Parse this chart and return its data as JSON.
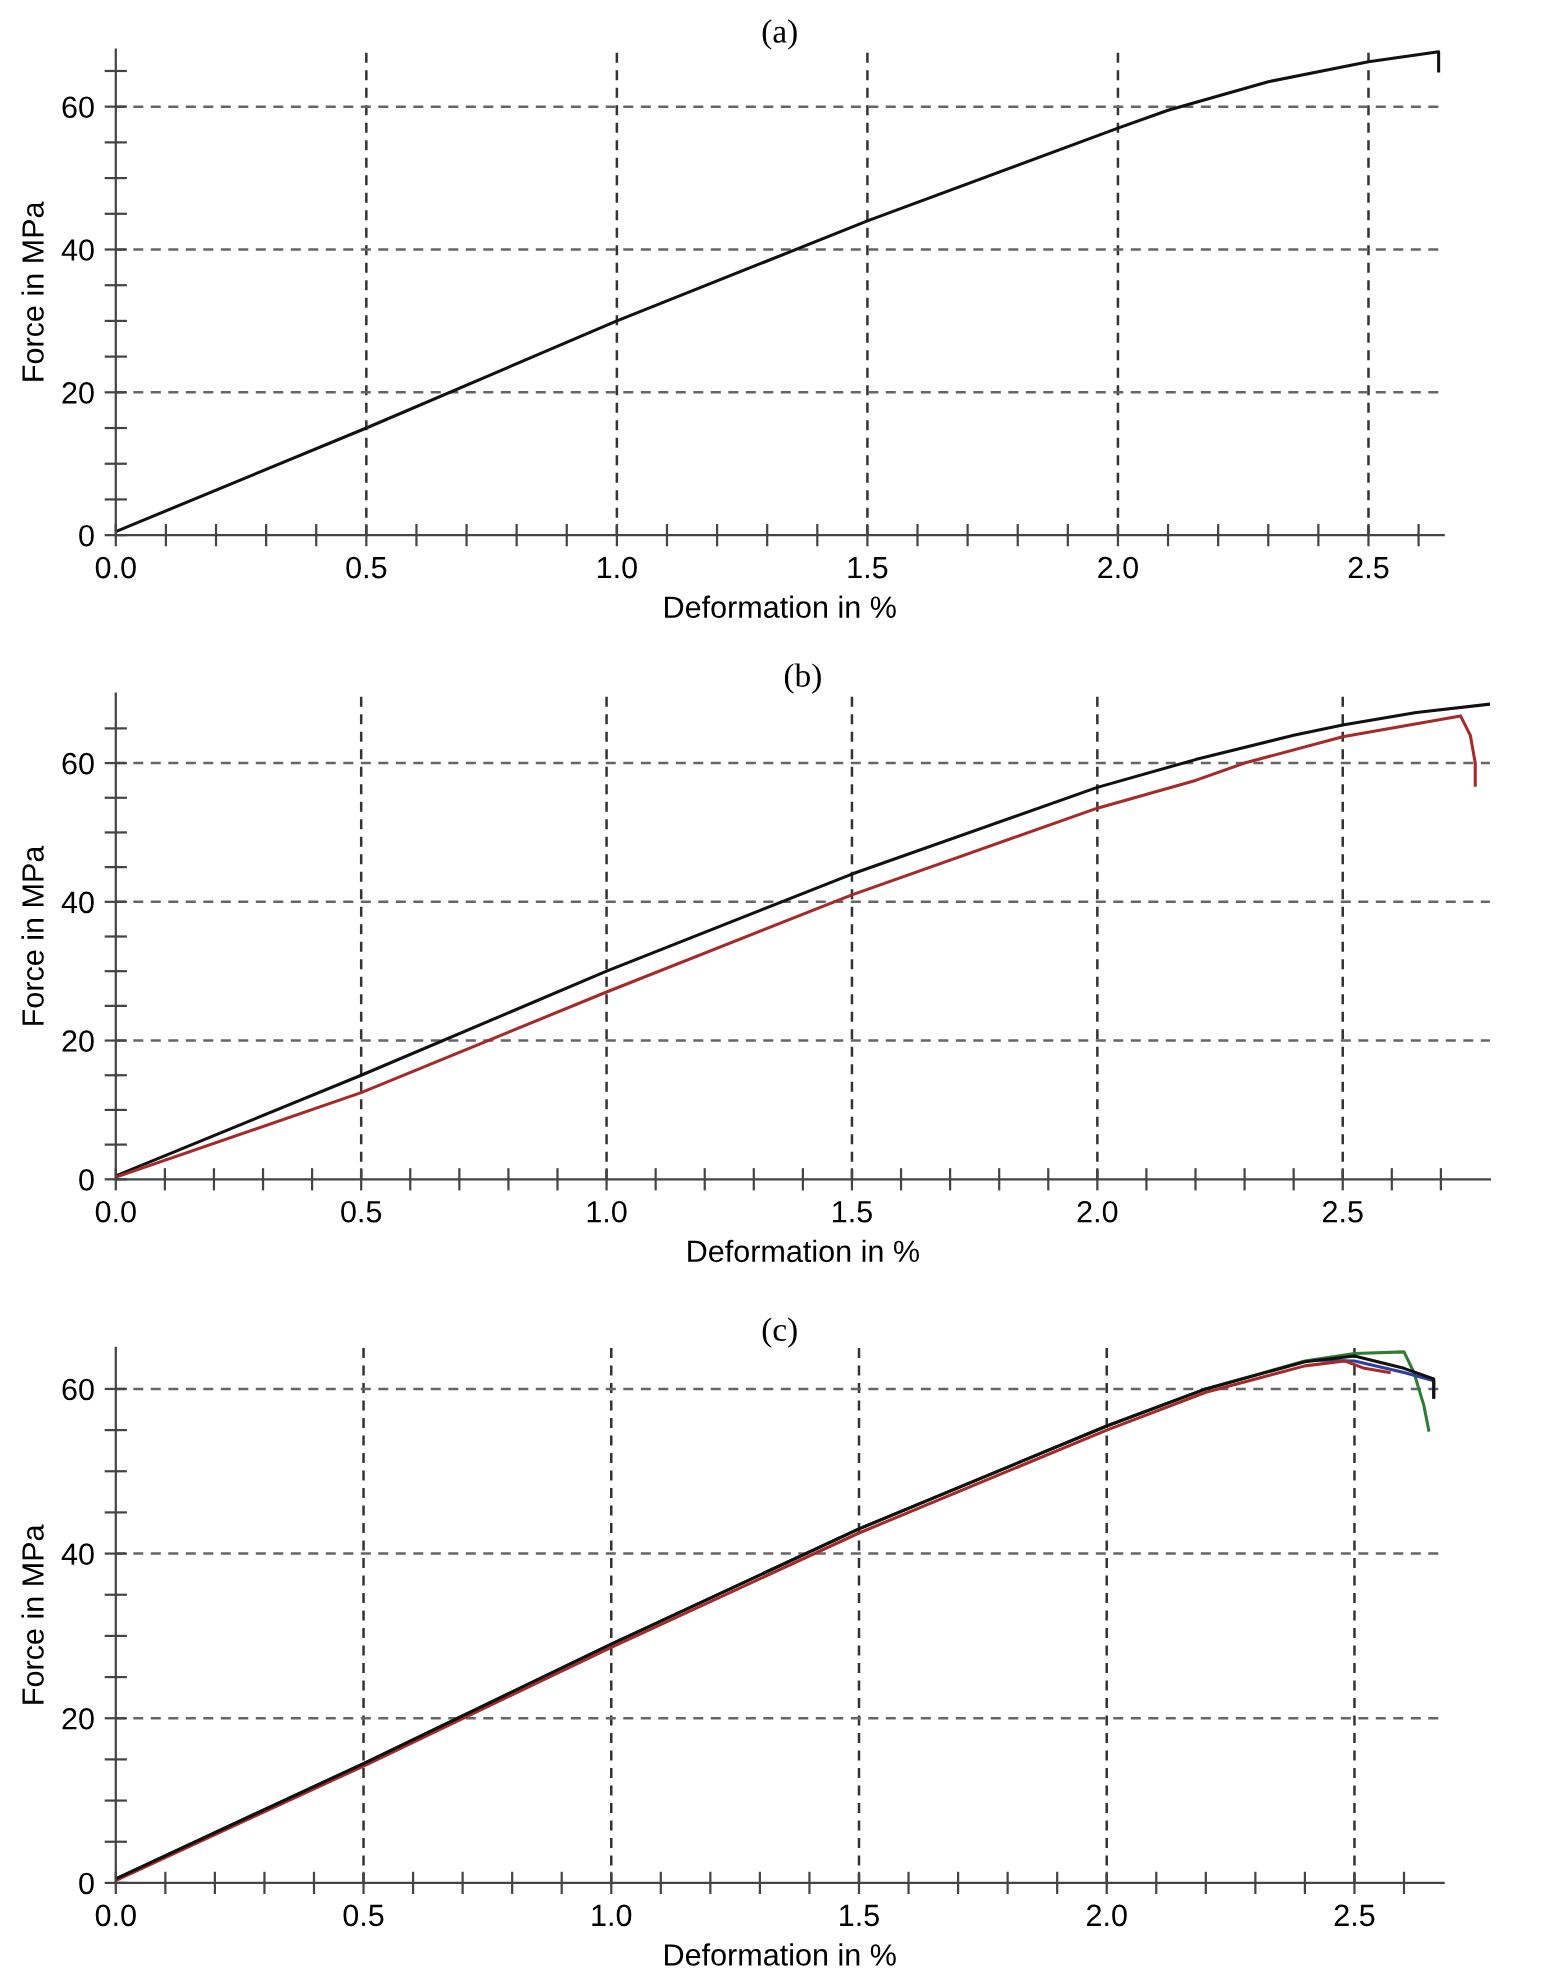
{
  "chart_data": [
    {
      "type": "line",
      "title": "(a)",
      "xlabel": "Deformation in %",
      "ylabel": "Force in MPa",
      "xlim": [
        0,
        2.65
      ],
      "ylim": [
        0,
        68
      ],
      "grid": true,
      "line_style": "solid",
      "marker": "none",
      "xticks": [
        {
          "value": 0,
          "label": "0.0"
        },
        {
          "value": 0.1,
          "label": null
        },
        {
          "value": 0.2,
          "label": null
        },
        {
          "value": 0.3,
          "label": null
        },
        {
          "value": 0.4,
          "label": null
        },
        {
          "value": 0.5,
          "label": "0.5"
        },
        {
          "value": 0.6,
          "label": null
        },
        {
          "value": 0.7,
          "label": null
        },
        {
          "value": 0.8,
          "label": null
        },
        {
          "value": 0.9,
          "label": null
        },
        {
          "value": 1.0,
          "label": "1.0"
        },
        {
          "value": 1.1,
          "label": null
        },
        {
          "value": 1.2,
          "label": null
        },
        {
          "value": 1.3,
          "label": null
        },
        {
          "value": 1.4,
          "label": null
        },
        {
          "value": 1.5,
          "label": "1.5"
        },
        {
          "value": 1.6,
          "label": null
        },
        {
          "value": 1.7,
          "label": null
        },
        {
          "value": 1.8,
          "label": null
        },
        {
          "value": 1.9,
          "label": null
        },
        {
          "value": 2.0,
          "label": "2.0"
        },
        {
          "value": 2.1,
          "label": null
        },
        {
          "value": 2.2,
          "label": null
        },
        {
          "value": 2.3,
          "label": null
        },
        {
          "value": 2.4,
          "label": null
        },
        {
          "value": 2.5,
          "label": "2.5"
        },
        {
          "value": 2.6,
          "label": null
        }
      ],
      "yticks": [
        0,
        {
          "value": 5,
          "label": null
        },
        {
          "value": 10,
          "label": null
        },
        {
          "value": 15,
          "label": null
        },
        20,
        {
          "value": 25,
          "label": null
        },
        {
          "value": 30,
          "label": null
        },
        {
          "value": 35,
          "label": null
        },
        40,
        {
          "value": 45,
          "label": null
        },
        {
          "value": 50,
          "label": null
        },
        {
          "value": 55,
          "label": null
        },
        60,
        {
          "value": 65,
          "label": null
        }
      ],
      "series": [
        {
          "color": "#111111",
          "x": [
            0,
            0.5,
            1.0,
            1.5,
            2.0,
            2.1,
            2.3,
            2.5,
            2.64,
            2.64
          ],
          "values": [
            0.5,
            15,
            30,
            44,
            57,
            59.5,
            63.5,
            66.3,
            67.7,
            65
          ]
        }
      ]
    },
    {
      "type": "line",
      "title": "(b)",
      "xlabel": "Deformation in %",
      "ylabel": "Force in MPa",
      "xlim": [
        0,
        2.8
      ],
      "ylim": [
        0,
        70
      ],
      "grid": true,
      "line_style": "solid",
      "marker": "none",
      "xticks": [
        {
          "value": 0,
          "label": "0.0"
        },
        {
          "value": 0.1,
          "label": null
        },
        {
          "value": 0.2,
          "label": null
        },
        {
          "value": 0.3,
          "label": null
        },
        {
          "value": 0.4,
          "label": null
        },
        {
          "value": 0.5,
          "label": "0.5"
        },
        {
          "value": 0.6,
          "label": null
        },
        {
          "value": 0.7,
          "label": null
        },
        {
          "value": 0.8,
          "label": null
        },
        {
          "value": 0.9,
          "label": null
        },
        {
          "value": 1.0,
          "label": "1.0"
        },
        {
          "value": 1.1,
          "label": null
        },
        {
          "value": 1.2,
          "label": null
        },
        {
          "value": 1.3,
          "label": null
        },
        {
          "value": 1.4,
          "label": null
        },
        {
          "value": 1.5,
          "label": "1.5"
        },
        {
          "value": 1.6,
          "label": null
        },
        {
          "value": 1.7,
          "label": null
        },
        {
          "value": 1.8,
          "label": null
        },
        {
          "value": 1.9,
          "label": null
        },
        {
          "value": 2.0,
          "label": "2.0"
        },
        {
          "value": 2.1,
          "label": null
        },
        {
          "value": 2.2,
          "label": null
        },
        {
          "value": 2.3,
          "label": null
        },
        {
          "value": 2.4,
          "label": null
        },
        {
          "value": 2.5,
          "label": "2.5"
        },
        {
          "value": 2.6,
          "label": null
        },
        {
          "value": 2.7,
          "label": null
        }
      ],
      "yticks": [
        0,
        {
          "value": 5,
          "label": null
        },
        {
          "value": 10,
          "label": null
        },
        {
          "value": 15,
          "label": null
        },
        20,
        {
          "value": 25,
          "label": null
        },
        {
          "value": 30,
          "label": null
        },
        {
          "value": 35,
          "label": null
        },
        40,
        {
          "value": 45,
          "label": null
        },
        {
          "value": 50,
          "label": null
        },
        {
          "value": 55,
          "label": null
        },
        60,
        {
          "value": 65,
          "label": null
        }
      ],
      "series": [
        {
          "color": "#111111",
          "x": [
            0,
            0.5,
            1.0,
            1.5,
            2.0,
            2.2,
            2.4,
            2.5,
            2.65,
            2.8
          ],
          "values": [
            0.5,
            15,
            30,
            44,
            56.5,
            60.5,
            64,
            65.5,
            67.3,
            68.5
          ]
        },
        {
          "color": "#a52a2a",
          "x": [
            0,
            0.5,
            1.0,
            1.5,
            2.0,
            2.2,
            2.3,
            2.5,
            2.74,
            2.76,
            2.77,
            2.77
          ],
          "values": [
            0.3,
            12.5,
            27,
            41,
            53.5,
            57.5,
            60,
            63.8,
            66.8,
            64,
            60,
            56.8
          ]
        }
      ]
    },
    {
      "type": "line",
      "title": "(c)",
      "xlabel": "Deformation in %",
      "ylabel": "Force in MPa",
      "xlim": [
        0,
        2.68
      ],
      "ylim": [
        0,
        65
      ],
      "grid": true,
      "line_style": "solid",
      "marker": "none",
      "xticks": [
        {
          "value": 0,
          "label": "0.0"
        },
        {
          "value": 0.1,
          "label": null
        },
        {
          "value": 0.2,
          "label": null
        },
        {
          "value": 0.3,
          "label": null
        },
        {
          "value": 0.4,
          "label": null
        },
        {
          "value": 0.5,
          "label": "0.5"
        },
        {
          "value": 0.6,
          "label": null
        },
        {
          "value": 0.7,
          "label": null
        },
        {
          "value": 0.8,
          "label": null
        },
        {
          "value": 0.9,
          "label": null
        },
        {
          "value": 1.0,
          "label": "1.0"
        },
        {
          "value": 1.1,
          "label": null
        },
        {
          "value": 1.2,
          "label": null
        },
        {
          "value": 1.3,
          "label": null
        },
        {
          "value": 1.4,
          "label": null
        },
        {
          "value": 1.5,
          "label": "1.5"
        },
        {
          "value": 1.6,
          "label": null
        },
        {
          "value": 1.7,
          "label": null
        },
        {
          "value": 1.8,
          "label": null
        },
        {
          "value": 1.9,
          "label": null
        },
        {
          "value": 2.0,
          "label": "2.0"
        },
        {
          "value": 2.1,
          "label": null
        },
        {
          "value": 2.2,
          "label": null
        },
        {
          "value": 2.3,
          "label": null
        },
        {
          "value": 2.4,
          "label": null
        },
        {
          "value": 2.5,
          "label": "2.5"
        },
        {
          "value": 2.6,
          "label": null
        }
      ],
      "yticks": [
        0,
        {
          "value": 5,
          "label": null
        },
        {
          "value": 10,
          "label": null
        },
        {
          "value": 15,
          "label": null
        },
        20,
        {
          "value": 25,
          "label": null
        },
        {
          "value": 30,
          "label": null
        },
        {
          "value": 35,
          "label": null
        },
        40,
        {
          "value": 45,
          "label": null
        },
        {
          "value": 50,
          "label": null
        },
        {
          "value": 55,
          "label": null
        },
        60
      ],
      "series": [
        {
          "color": "#2e7d32",
          "x": [
            0,
            0.5,
            1.0,
            1.5,
            2.0,
            2.2,
            2.4,
            2.5,
            2.6,
            2.62,
            2.64,
            2.65
          ],
          "values": [
            0.5,
            14.5,
            29,
            43,
            55.5,
            60,
            63.4,
            64.3,
            64.5,
            62,
            58,
            55
          ]
        },
        {
          "color": "#303f9f",
          "x": [
            2.42,
            2.5,
            2.6,
            2.66,
            2.66
          ],
          "values": [
            63.5,
            63.4,
            62,
            61,
            59
          ]
        },
        {
          "color": "#a52a2a",
          "x": [
            0,
            0.5,
            1.0,
            1.5,
            2.0,
            2.2,
            2.4,
            2.48,
            2.52,
            2.57
          ],
          "values": [
            0.3,
            14.2,
            28.6,
            42.5,
            55,
            59.6,
            62.8,
            63.4,
            62.5,
            62
          ]
        },
        {
          "color": "#111111",
          "x": [
            0,
            0.5,
            1.0,
            1.5,
            2.0,
            2.2,
            2.4,
            2.5,
            2.6,
            2.66,
            2.66
          ],
          "values": [
            0.5,
            14.5,
            29,
            43,
            55.5,
            60,
            63.3,
            64,
            62.5,
            61.2,
            59
          ]
        }
      ]
    }
  ]
}
